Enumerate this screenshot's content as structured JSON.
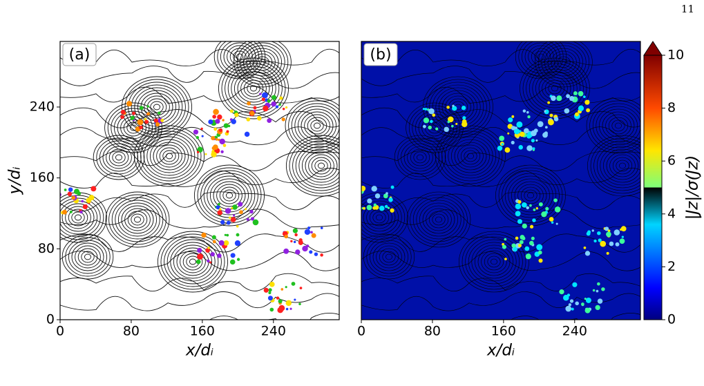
{
  "page_number": "11",
  "chart_data": [
    {
      "type": "image",
      "panel_label": "(a)",
      "xlabel": "x/dᵢ",
      "ylabel": "y/dᵢ",
      "xlim": [
        0,
        314
      ],
      "ylim": [
        0,
        314
      ],
      "xticks": [
        0,
        80,
        160,
        240
      ],
      "yticks": [
        0,
        80,
        160,
        240
      ]
    },
    {
      "type": "image",
      "panel_label": "(b)",
      "xlabel": "x/dᵢ",
      "xlim": [
        0,
        314
      ],
      "ylim": [
        0,
        314
      ],
      "xticks": [
        0,
        80,
        160,
        240
      ],
      "colorbar": {
        "label": "|Jz|/σ(Jz)",
        "lim": [
          0,
          10
        ],
        "ticks": [
          0,
          2,
          4,
          6,
          8,
          10
        ]
      }
    }
  ]
}
